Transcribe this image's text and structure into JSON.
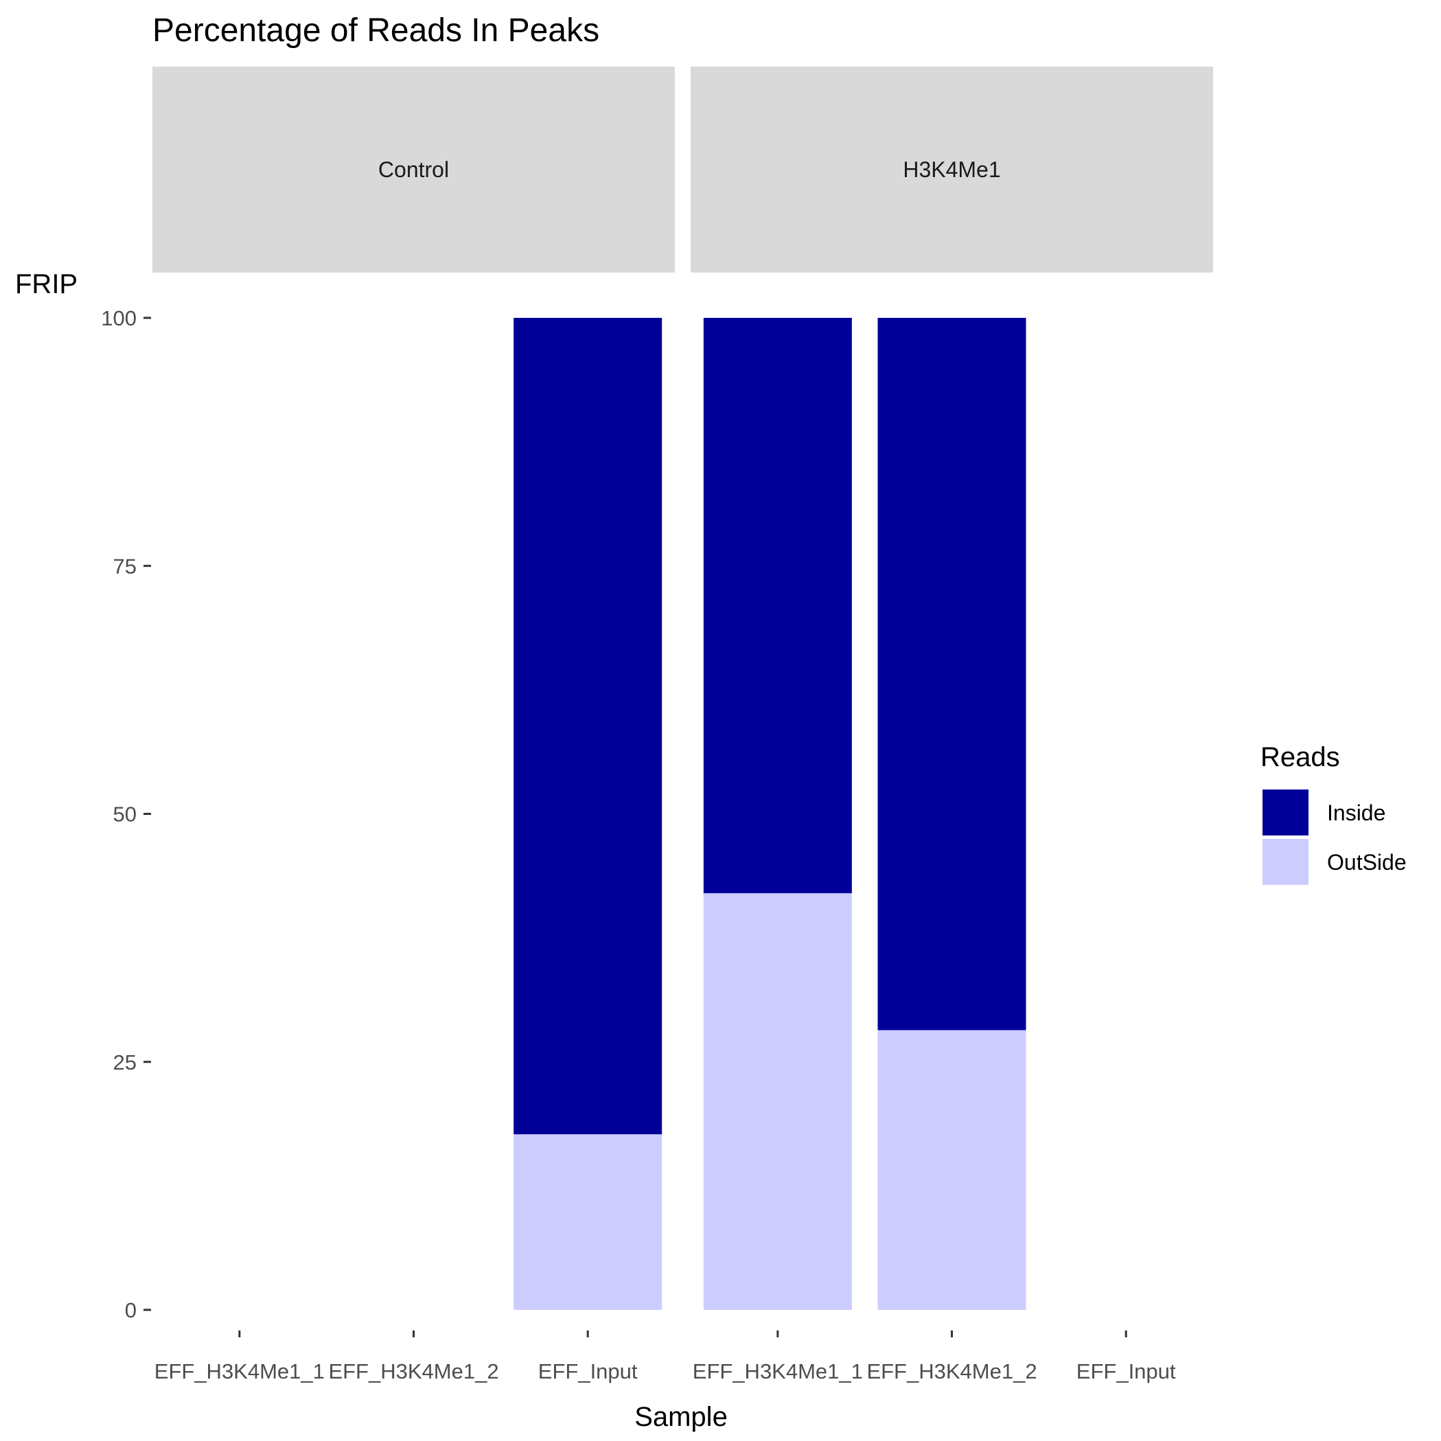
{
  "chart_data": {
    "type": "bar",
    "stacked": true,
    "title": "Percentage of Reads In Peaks",
    "xlabel": "Sample",
    "ylabel": "FRIP",
    "ylim": [
      0,
      100
    ],
    "yticks": [
      0,
      25,
      50,
      75,
      100
    ],
    "categories": [
      "EFF_H3K4Me1_1",
      "EFF_H3K4Me1_2",
      "EFF_Input"
    ],
    "facets": [
      {
        "label": "Control",
        "series": [
          {
            "name": "OutSide",
            "values": [
              null,
              null,
              17.7
            ]
          },
          {
            "name": "Inside",
            "values": [
              null,
              null,
              82.3
            ]
          }
        ]
      },
      {
        "label": "H3K4Me1",
        "series": [
          {
            "name": "OutSide",
            "values": [
              42.0,
              28.2,
              null
            ]
          },
          {
            "name": "Inside",
            "values": [
              58.0,
              71.8,
              null
            ]
          }
        ]
      }
    ],
    "legend": {
      "title": "Reads",
      "position": "right",
      "entries": [
        {
          "name": "Inside",
          "color": "#000099"
        },
        {
          "name": "OutSide",
          "color": "#CCCCFF"
        }
      ]
    },
    "colors": {
      "Inside": "#000099",
      "OutSide": "#CCCCFF",
      "strip": "#D9D9D9"
    },
    "grid": false
  }
}
